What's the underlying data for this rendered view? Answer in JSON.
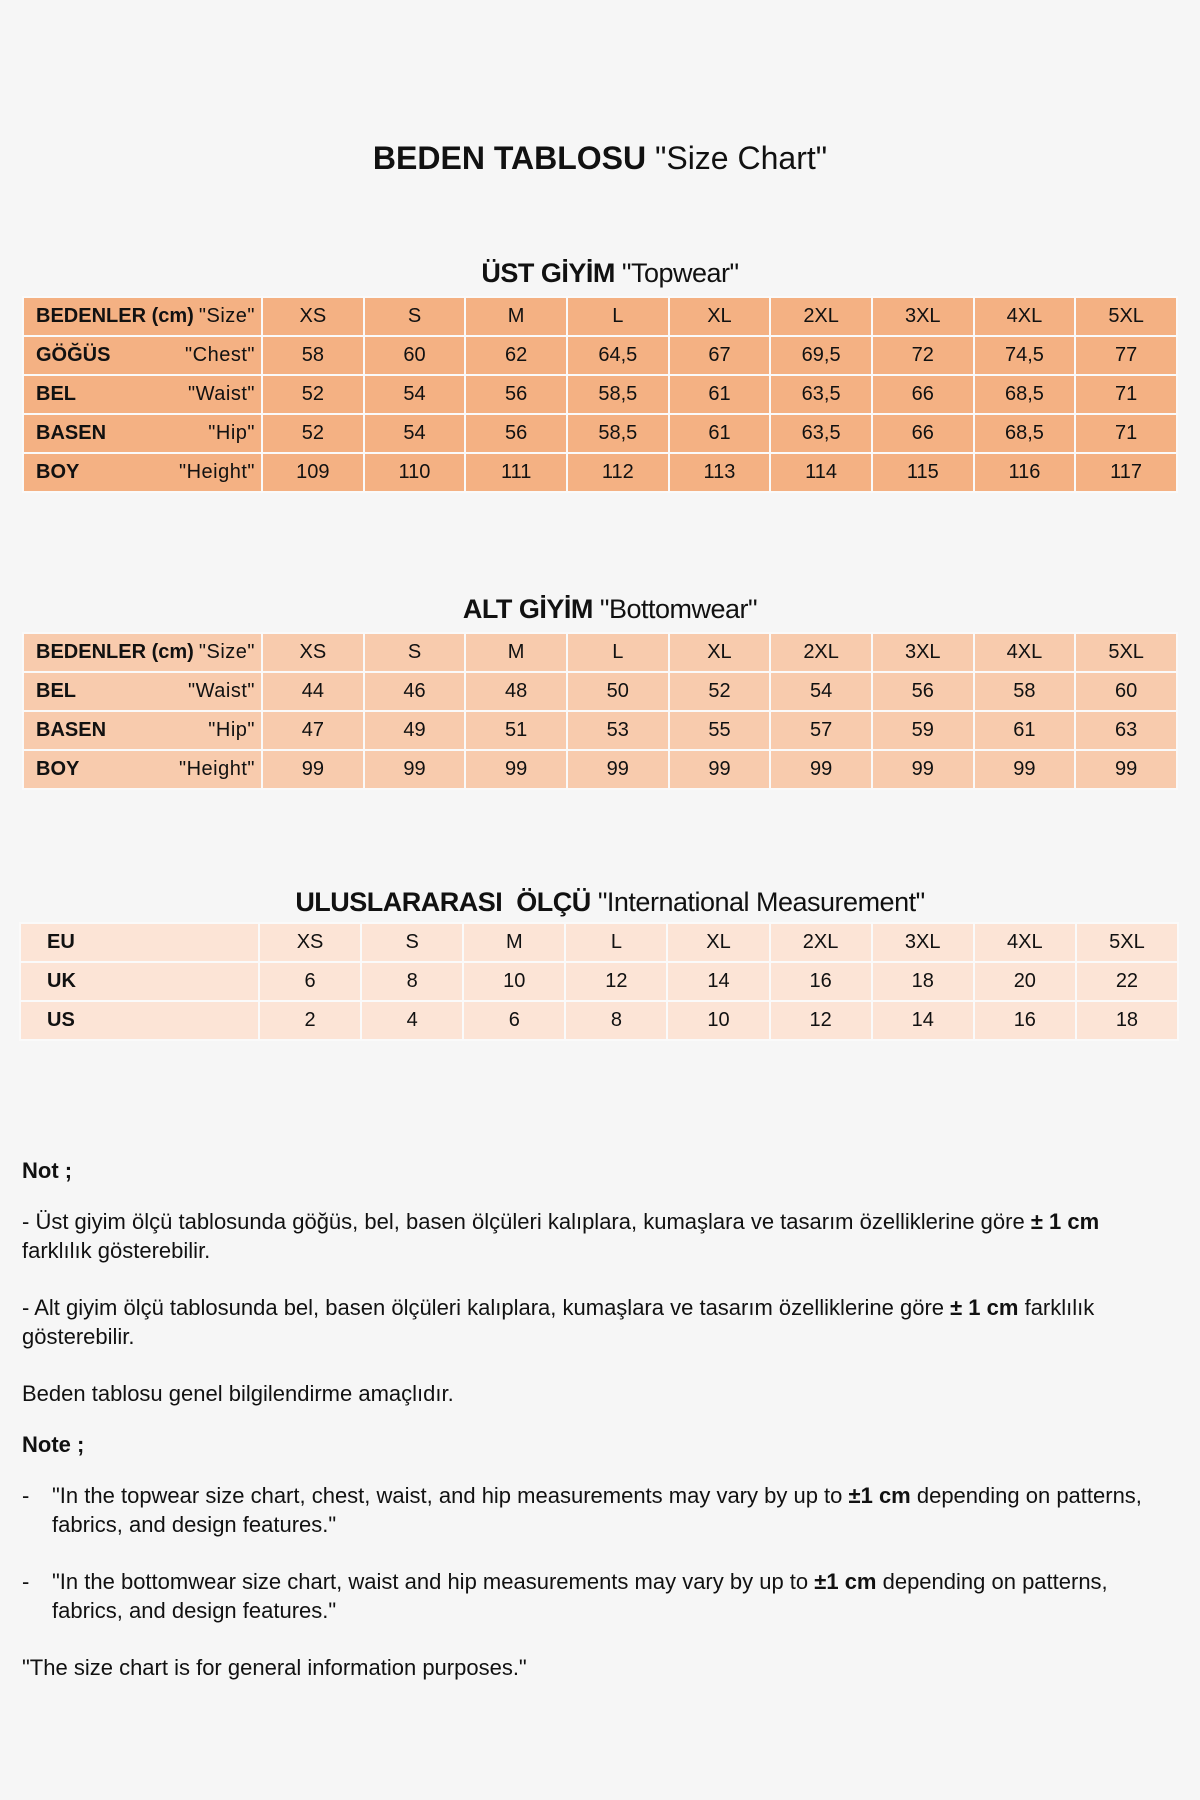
{
  "title": {
    "bold": "BEDEN TABLOSU",
    "rest": "\"Size Chart\""
  },
  "colors": {
    "topwear": "#f4b183",
    "bottomwear": "#f8cbad",
    "international": "#fce4d6",
    "background": "#f6f6f6"
  },
  "topwear": {
    "heading_bold": "ÜST GİYİM",
    "heading_rest": "\"Topwear\"",
    "header": {
      "tr": "BEDENLER (cm)",
      "en": "\"Size\"",
      "sizes": [
        "XS",
        "S",
        "M",
        "L",
        "XL",
        "2XL",
        "3XL",
        "4XL",
        "5XL"
      ]
    },
    "rows": [
      {
        "tr": "GÖĞÜS",
        "en": "\"Chest\"",
        "values": [
          "58",
          "60",
          "62",
          "64,5",
          "67",
          "69,5",
          "72",
          "74,5",
          "77"
        ]
      },
      {
        "tr": "BEL",
        "en": "\"Waist\"",
        "values": [
          "52",
          "54",
          "56",
          "58,5",
          "61",
          "63,5",
          "66",
          "68,5",
          "71"
        ]
      },
      {
        "tr": "BASEN",
        "en": "\"Hip\"",
        "values": [
          "52",
          "54",
          "56",
          "58,5",
          "61",
          "63,5",
          "66",
          "68,5",
          "71"
        ]
      },
      {
        "tr": "BOY",
        "en": "\"Height\"",
        "values": [
          "109",
          "110",
          "111",
          "112",
          "113",
          "114",
          "115",
          "116",
          "117"
        ]
      }
    ]
  },
  "bottomwear": {
    "heading_bold": "ALT GİYİM",
    "heading_rest": "\"Bottomwear\"",
    "header": {
      "tr": "BEDENLER (cm)",
      "en": "\"Size\"",
      "sizes": [
        "XS",
        "S",
        "M",
        "L",
        "XL",
        "2XL",
        "3XL",
        "4XL",
        "5XL"
      ]
    },
    "rows": [
      {
        "tr": "BEL",
        "en": "\"Waist\"",
        "values": [
          "44",
          "46",
          "48",
          "50",
          "52",
          "54",
          "56",
          "58",
          "60"
        ]
      },
      {
        "tr": "BASEN",
        "en": "\"Hip\"",
        "values": [
          "47",
          "49",
          "51",
          "53",
          "55",
          "57",
          "59",
          "61",
          "63"
        ]
      },
      {
        "tr": "BOY",
        "en": "\"Height\"",
        "values": [
          "99",
          "99",
          "99",
          "99",
          "99",
          "99",
          "99",
          "99",
          "99"
        ]
      }
    ]
  },
  "international": {
    "heading_bold": "ULUSLARARASI  ÖLÇÜ",
    "heading_rest": "\"International Measurement\"",
    "rows": [
      {
        "label": "EU",
        "values": [
          "XS",
          "S",
          "M",
          "L",
          "XL",
          "2XL",
          "3XL",
          "4XL",
          "5XL"
        ]
      },
      {
        "label": "UK",
        "values": [
          "6",
          "8",
          "10",
          "12",
          "14",
          "16",
          "18",
          "20",
          "22"
        ]
      },
      {
        "label": "US",
        "values": [
          "2",
          "4",
          "6",
          "8",
          "10",
          "12",
          "14",
          "16",
          "18"
        ]
      }
    ]
  },
  "notes": {
    "tr_heading": "Not ;",
    "tr_1a": "- Üst giyim ölçü tablosunda göğüs, bel, basen ölçüleri kalıplara, kumaşlara ve tasarım özelliklerine göre ",
    "tr_1b": "± 1 cm",
    "tr_1c": " farklılık gösterebilir.",
    "tr_2a": "- Alt giyim ölçü tablosunda bel, basen ölçüleri kalıplara, kumaşlara ve tasarım özelliklerine göre ",
    "tr_2b": "± 1 cm",
    "tr_2c": " farklılık gösterebilir.",
    "tr_3": "Beden tablosu genel bilgilendirme amaçlıdır.",
    "en_heading": "Note ;",
    "dash": "-",
    "en_1a": "\"In the topwear size chart, chest, waist, and hip measurements may vary by up to ",
    "en_1b": "±1 cm",
    "en_1c": " depending on patterns, fabrics, and design features.\"",
    "en_2a": "\"In the bottomwear size chart, waist and hip measurements may vary by up to ",
    "en_2b": "±1 cm",
    "en_2c": " depending on patterns, fabrics, and design features.\"",
    "en_3": "\"The size chart is for general information purposes.\""
  }
}
